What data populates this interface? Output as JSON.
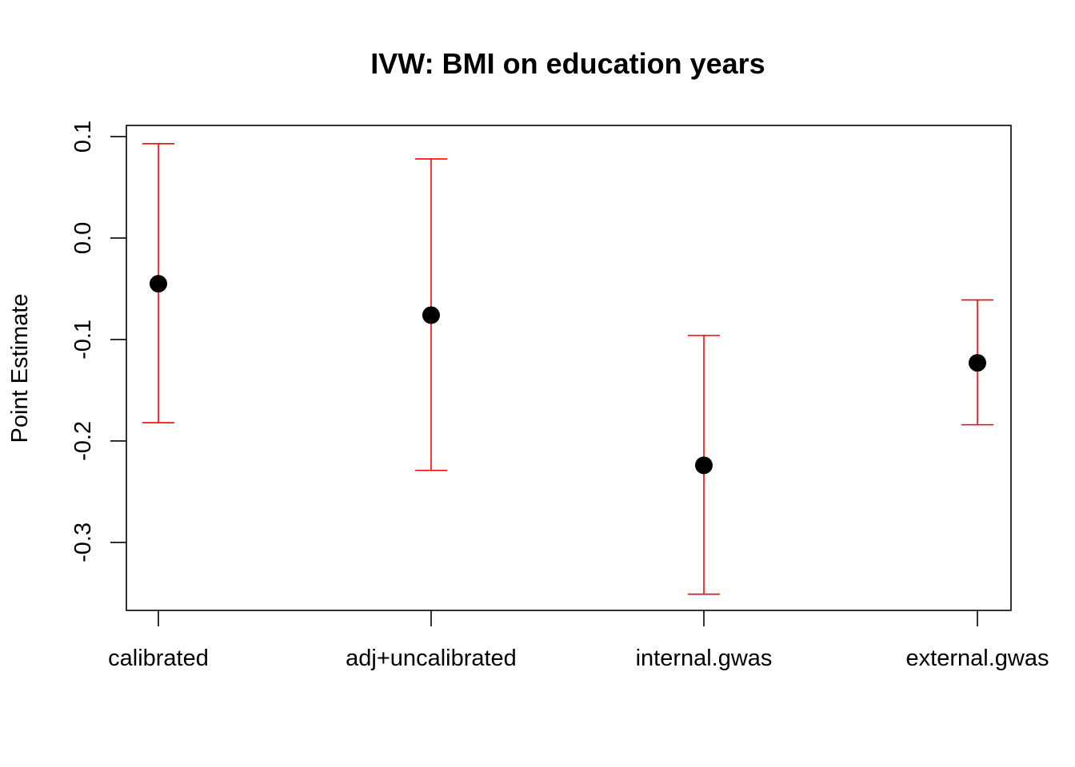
{
  "chart_data": {
    "type": "scatter",
    "title": "IVW: BMI on education years",
    "xlabel": "",
    "ylabel": "Point Estimate",
    "categories": [
      "calibrated",
      "adj+uncalibrated",
      "internal.gwas",
      "external.gwas"
    ],
    "series": [
      {
        "values": [
          -0.045,
          -0.076,
          -0.224,
          -0.123
        ],
        "lower": [
          -0.182,
          -0.229,
          -0.351,
          -0.184
        ],
        "upper": [
          0.093,
          0.078,
          -0.096,
          -0.061
        ]
      }
    ],
    "yticks": [
      0.1,
      0.0,
      -0.1,
      -0.2,
      -0.3
    ],
    "ytick_labels": [
      "0.1",
      "0.0",
      "-0.1",
      "-0.2",
      "-0.3"
    ],
    "ylim": [
      -0.367,
      0.111
    ],
    "grid": false,
    "colors": {
      "point": "#000000",
      "errorbar": "#ff0000",
      "axis": "#000000"
    }
  }
}
